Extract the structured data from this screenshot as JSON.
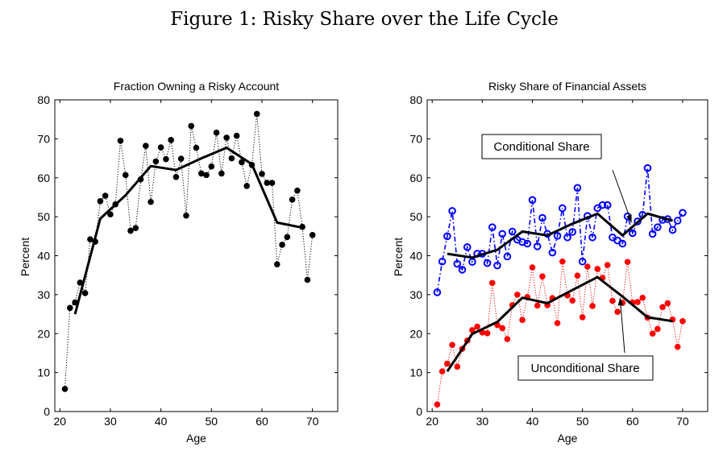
{
  "figure": {
    "title": "Figure 1: Risky Share over the Life Cycle"
  },
  "chart_data": [
    {
      "type": "line",
      "title": "Fraction Owning a Risky Account",
      "xlabel": "Age",
      "ylabel": "Percent",
      "xlim": [
        19,
        75
      ],
      "ylim": [
        0,
        80
      ],
      "xticks": [
        20,
        30,
        40,
        50,
        60,
        70
      ],
      "yticks": [
        0,
        10,
        20,
        30,
        40,
        50,
        60,
        70,
        80
      ],
      "grid": false,
      "series": [
        {
          "style": "dotted-with-markers",
          "color": "#000000",
          "x": [
            21,
            22,
            23,
            24,
            25,
            26,
            27,
            28,
            29,
            30,
            31,
            32,
            33,
            34,
            35,
            36,
            37,
            38,
            39,
            40,
            41,
            42,
            43,
            44,
            45,
            46,
            47,
            48,
            49,
            50,
            51,
            52,
            53,
            54,
            55,
            56,
            57,
            58,
            59,
            60,
            61,
            62,
            63,
            64,
            65,
            66,
            67,
            68,
            69,
            70
          ],
          "y": [
            5.8,
            26.6,
            28,
            33.1,
            30.4,
            44.2,
            43.6,
            54,
            55.4,
            50.6,
            53.2,
            69.5,
            60.7,
            46.4,
            47.1,
            59.6,
            68.2,
            53.8,
            64.2,
            67.8,
            64.8,
            69.7,
            60.2,
            64.9,
            50.3,
            73.3,
            67.7,
            61.1,
            60.7,
            62.9,
            71.6,
            61.1,
            70.3,
            65,
            70.8,
            64,
            57.9,
            63.3,
            76.4,
            61,
            58.7,
            58.7,
            37.8,
            42.8,
            44.8,
            54.4,
            56.7,
            47.4,
            33.8,
            45.3
          ]
        },
        {
          "style": "solid-thick",
          "color": "#000000",
          "x": [
            23,
            28,
            33,
            38,
            43,
            48,
            53,
            58,
            63,
            68
          ],
          "y": [
            25,
            49.5,
            55.5,
            63,
            62,
            65,
            67.7,
            63.5,
            48.5,
            47.2
          ]
        }
      ]
    },
    {
      "type": "line",
      "title": "Risky Share of Financial Assets",
      "xlabel": "Age",
      "ylabel": "Percent",
      "xlim": [
        19,
        75
      ],
      "ylim": [
        0,
        80
      ],
      "xticks": [
        20,
        30,
        40,
        50,
        60,
        70
      ],
      "yticks": [
        0,
        10,
        20,
        30,
        40,
        50,
        60,
        70,
        80
      ],
      "grid": false,
      "annotations": [
        {
          "text": "Conditional Share",
          "arrow_to": [
            59.8,
            48.5
          ]
        },
        {
          "text": "Unconditional Share",
          "arrow_to": [
            57.5,
            29.2
          ]
        }
      ],
      "series": [
        {
          "style": "dash-dot-with-circle-markers",
          "color": "#0000ff",
          "x": [
            21,
            22,
            23,
            24,
            25,
            26,
            27,
            28,
            29,
            30,
            31,
            32,
            33,
            34,
            35,
            36,
            37,
            38,
            39,
            40,
            41,
            42,
            43,
            44,
            45,
            46,
            47,
            48,
            49,
            50,
            51,
            52,
            53,
            54,
            55,
            56,
            57,
            58,
            59,
            60,
            61,
            62,
            63,
            64,
            65,
            66,
            67,
            68,
            69,
            70
          ],
          "y": [
            30.6,
            38.5,
            45,
            51.5,
            37.9,
            36.4,
            42.2,
            38.4,
            40.5,
            40.5,
            38.1,
            47.3,
            37.5,
            45.6,
            39.8,
            46.2,
            44.1,
            43.5,
            43.1,
            54.3,
            42.4,
            49.7,
            45.6,
            40.8,
            45.1,
            52.2,
            44.7,
            46.1,
            57.4,
            38.5,
            50.2,
            44.7,
            52.2,
            53,
            53,
            44.7,
            43.9,
            43.1,
            50.1,
            45.8,
            48.8,
            50.5,
            62.5,
            45.6,
            47.3,
            49.2,
            49.4,
            46.6,
            49,
            51
          ]
        },
        {
          "style": "dotted-with-markers",
          "color": "#ff0000",
          "x": [
            21,
            22,
            23,
            24,
            25,
            26,
            27,
            28,
            29,
            30,
            31,
            32,
            33,
            34,
            35,
            36,
            37,
            38,
            39,
            40,
            41,
            42,
            43,
            44,
            45,
            46,
            47,
            48,
            49,
            50,
            51,
            52,
            53,
            54,
            55,
            56,
            57,
            58,
            59,
            60,
            61,
            62,
            63,
            64,
            65,
            66,
            67,
            68,
            69,
            70
          ],
          "y": [
            1.8,
            10.3,
            12.3,
            17.1,
            11.5,
            16.1,
            18.2,
            20.9,
            21.8,
            20.3,
            20.1,
            33,
            22.2,
            21.4,
            18.6,
            27.3,
            30,
            23.5,
            29.4,
            37,
            27.2,
            34.7,
            27.3,
            29.1,
            22.7,
            38.5,
            29.8,
            28.5,
            34.9,
            24.2,
            37.2,
            27.1,
            36.6,
            34.3,
            37.6,
            28.4,
            25.6,
            27.9,
            38.4,
            28,
            28.1,
            29.2,
            24.1,
            20,
            21.2,
            26.8,
            27.8,
            23.6,
            16.6,
            23.2
          ]
        },
        {
          "style": "solid-thick",
          "color": "#000000",
          "x": [
            23,
            28,
            33,
            38,
            43,
            48,
            53,
            58,
            63,
            68
          ],
          "y": [
            40.5,
            39.5,
            41.5,
            46.2,
            45.2,
            48.2,
            50.8,
            45.2,
            50.8,
            49
          ]
        },
        {
          "style": "solid-thick",
          "color": "#000000",
          "x": [
            23,
            28,
            33,
            38,
            43,
            48,
            53,
            58,
            63,
            68
          ],
          "y": [
            10.3,
            19.9,
            23,
            29.2,
            27.8,
            31.2,
            34.5,
            29.5,
            24.2,
            23.2
          ]
        }
      ]
    }
  ]
}
